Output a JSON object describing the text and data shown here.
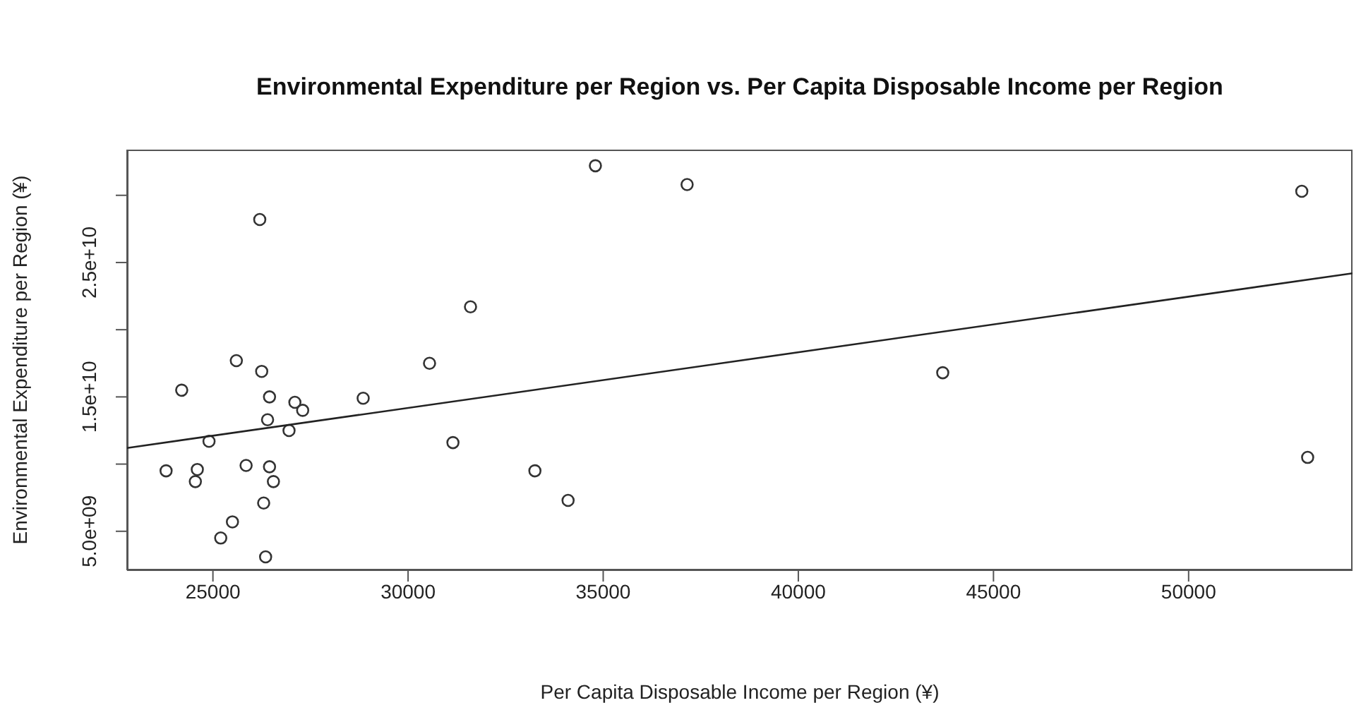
{
  "chart_data": {
    "type": "scatter",
    "title": "Environmental Expenditure per Region vs. Per Capita Disposable Income per Region",
    "xlabel": "Per Capita Disposable Income per Region (¥)",
    "ylabel": "Environmental Expenditure per Region (¥)",
    "xlim": [
      22800,
      54200
    ],
    "ylim": [
      2100000000,
      33400000000
    ],
    "xticks": [
      25000,
      30000,
      35000,
      40000,
      45000,
      50000
    ],
    "yticks": [
      {
        "value": 5000000000,
        "label": "5.0e+09"
      },
      {
        "value": 10000000000,
        "label": null
      },
      {
        "value": 15000000000,
        "label": "1.5e+10"
      },
      {
        "value": 20000000000,
        "label": null
      },
      {
        "value": 25000000000,
        "label": "2.5e+10"
      },
      {
        "value": 30000000000,
        "label": null
      }
    ],
    "marker": "circle",
    "series": [
      {
        "color": "#333333",
        "x": [
          26200,
          31600,
          25600,
          24200,
          26250,
          30550,
          26450,
          27100,
          27300,
          28850,
          26400,
          26950,
          24900,
          31150,
          23800,
          24600,
          24550,
          25850,
          26450,
          26550,
          26300,
          25500,
          25200,
          26350,
          33250,
          34100,
          34800,
          37150,
          43700,
          52900,
          53050
        ],
        "values": [
          28200000000,
          21700000000,
          17700000000,
          15500000000,
          16900000000,
          17500000000,
          15000000000,
          14600000000,
          14000000000,
          14900000000,
          13300000000,
          12500000000,
          11700000000,
          11600000000,
          9500000000,
          9600000000,
          8700000000,
          9900000000,
          9800000000,
          8700000000,
          7100000000,
          5700000000,
          4500000000,
          3100000000,
          9500000000,
          7300000000,
          32200000000,
          30800000000,
          16800000000,
          30300000000,
          10500000000
        ]
      },
      {
        "type": "line",
        "color": "#222222",
        "x": [
          22800,
          54200
        ],
        "values": [
          11200000000,
          24200000000
        ],
        "marker": "none"
      }
    ]
  }
}
